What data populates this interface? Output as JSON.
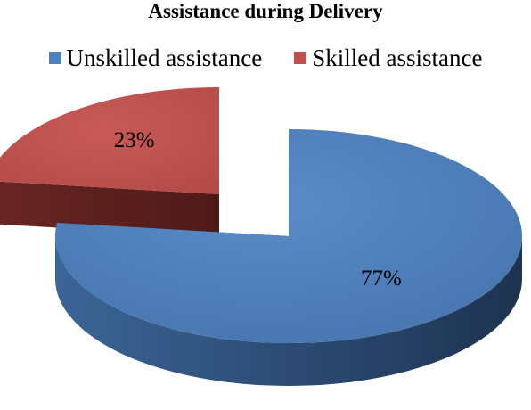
{
  "chart_data": {
    "type": "pie",
    "title": "Assistance during Delivery",
    "legend_position": "top",
    "three_d": true,
    "exploded": true,
    "slices": [
      {
        "name": "Unskilled assistance",
        "value": 77,
        "label": "77%",
        "color": "#4F81BD"
      },
      {
        "name": "Skilled assistance",
        "value": 23,
        "label": "23%",
        "color": "#C0504D"
      }
    ]
  }
}
